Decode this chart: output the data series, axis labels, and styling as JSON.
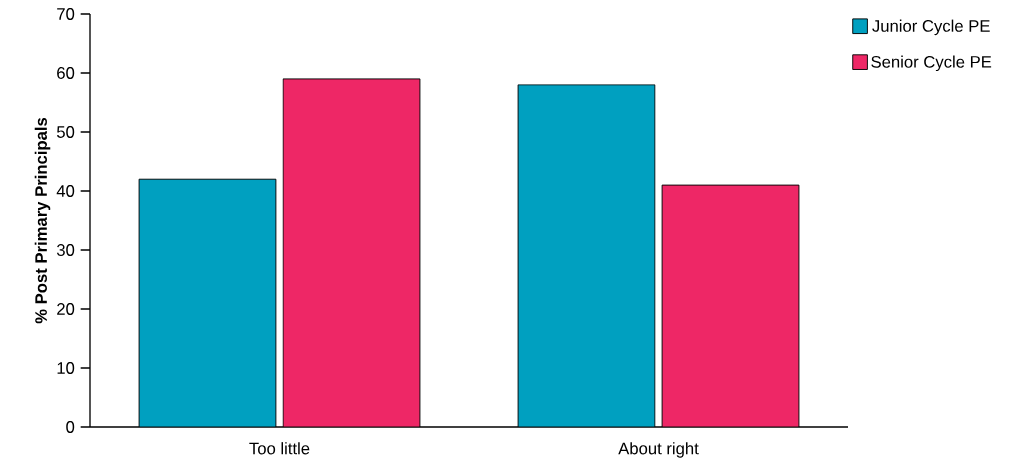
{
  "chart_data": {
    "type": "bar",
    "ylabel": "% Post Primary Principals",
    "categories": [
      "Too little",
      "About right"
    ],
    "series": [
      {
        "name": "Junior Cycle PE",
        "color": "#00a0c0",
        "values": [
          42,
          58
        ]
      },
      {
        "name": "Senior Cycle PE",
        "color": "#ee2766",
        "values": [
          59,
          41
        ]
      }
    ],
    "ylim": [
      0,
      70
    ],
    "yticks": [
      0,
      10,
      20,
      30,
      40,
      50,
      60,
      70
    ],
    "legend": "top right"
  }
}
